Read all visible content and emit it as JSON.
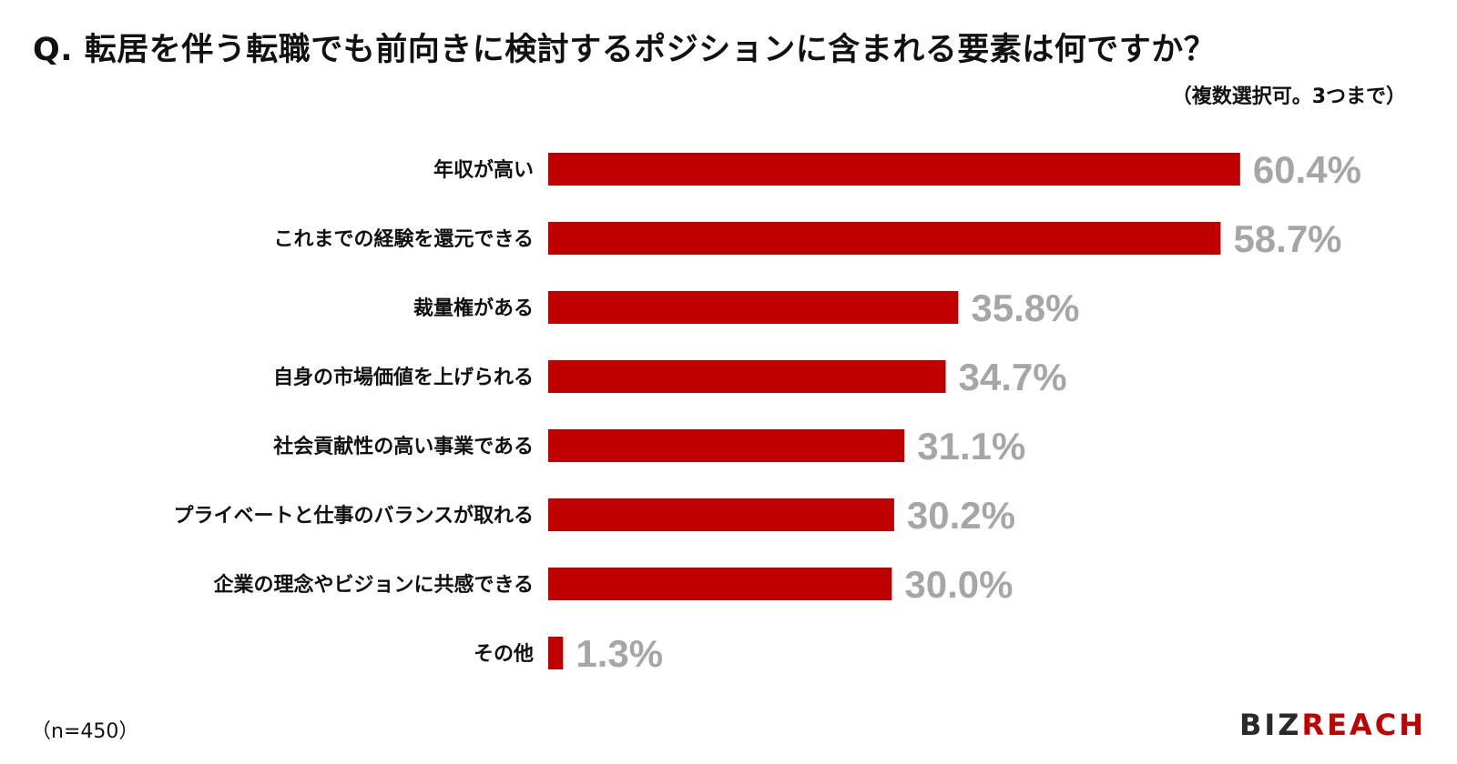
{
  "header": {
    "title": "Q. 転居を伴う転職でも前向きに検討するポジションに含まれる要素は何ですか？",
    "subtitle": "（複数選択可。3つまで）"
  },
  "footer": {
    "sample_size": "（n=450）",
    "brand_prefix": "BIZ",
    "brand_suffix": "REACH"
  },
  "colors": {
    "bar": "#c00000",
    "value_label": "#a6a6a6",
    "category_label": "#111111",
    "brand_accent": "#c00000"
  },
  "chart_data": {
    "type": "bar",
    "orientation": "horizontal",
    "value_suffix": "%",
    "xlim": [
      0,
      65
    ],
    "grid": false,
    "legend": "none",
    "categories": [
      "年収が高い",
      "これまでの経験を還元できる",
      "裁量権がある",
      "自身の市場価値を上げられる",
      "社会貢献性の高い事業である",
      "プライベートと仕事のバランスが取れる",
      "企業の理念やビジョンに共感できる",
      "その他"
    ],
    "values": [
      60.4,
      58.7,
      35.8,
      34.7,
      31.1,
      30.2,
      30.0,
      1.3
    ],
    "labels": [
      "60.4%",
      "58.7%",
      "35.8%",
      "34.7%",
      "31.1%",
      "30.2%",
      "30.0%",
      "1.3%"
    ]
  }
}
